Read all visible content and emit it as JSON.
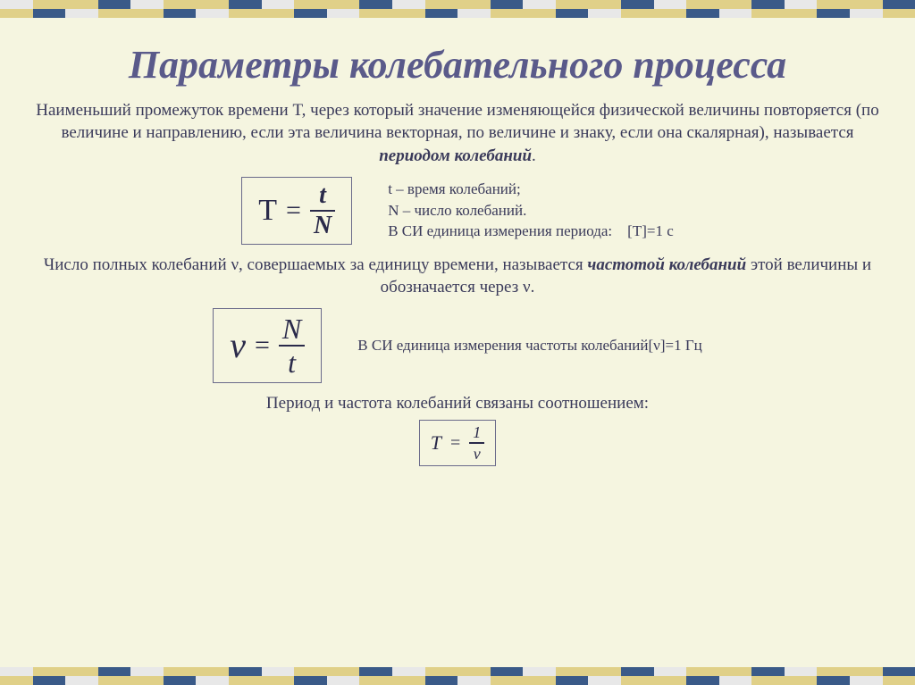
{
  "border": {
    "row1": [
      "#e8e8e8",
      "#e0d088",
      "#e0d088",
      "#3a5a88",
      "#e8e8e8",
      "#e0d088",
      "#e0d088",
      "#3a5a88",
      "#e8e8e8",
      "#e0d088",
      "#e0d088",
      "#3a5a88",
      "#e8e8e8",
      "#e0d088",
      "#e0d088",
      "#3a5a88",
      "#e8e8e8",
      "#e0d088",
      "#e0d088",
      "#3a5a88",
      "#e8e8e8",
      "#e0d088",
      "#e0d088",
      "#3a5a88",
      "#e8e8e8",
      "#e0d088",
      "#e0d088",
      "#3a5a88"
    ],
    "row2": [
      "#e0d088",
      "#3a5a88",
      "#e8e8e8",
      "#e0d088",
      "#e0d088",
      "#3a5a88",
      "#e8e8e8",
      "#e0d088",
      "#e0d088",
      "#3a5a88",
      "#e8e8e8",
      "#e0d088",
      "#e0d088",
      "#3a5a88",
      "#e8e8e8",
      "#e0d088",
      "#e0d088",
      "#3a5a88",
      "#e8e8e8",
      "#e0d088",
      "#e0d088",
      "#3a5a88",
      "#e8e8e8",
      "#e0d088",
      "#e0d088",
      "#3a5a88",
      "#e8e8e8",
      "#e0d088"
    ]
  },
  "title": "Параметры колебательного процесса",
  "para1_a": "Наименьший промежуток времени T, через который значение изменяющейся физической величины повторяется (по величине и направлению, если эта величина векторная, по величине и знаку, если она скалярная), называется ",
  "para1_term": "периодом колебаний",
  "para1_b": ".",
  "formula1": {
    "lhs": "T",
    "eq": "=",
    "num": "t",
    "den": "N"
  },
  "side1_l1": "t – время колебаний;",
  "side1_l2": "N – число колебаний.",
  "side1_l3": "В СИ единица измерения периода: [T]=1 с",
  "para2_a": "Число полных колебаний ν, совершаемых за единицу времени, называется ",
  "para2_term": "частотой колебаний",
  "para2_b": " этой величины и обозначается через ν.",
  "formula2": {
    "lhs": "ν",
    "eq": "=",
    "num": "N",
    "den": "t"
  },
  "side2": "В СИ единица измерения частоты колебаний[ν]=1 Гц",
  "para3": "Период и частота колебаний связаны соотношением:",
  "formula3": {
    "lhs": "T",
    "eq": "=",
    "num": "1",
    "den": "ν"
  },
  "colors": {
    "background": "#f5f5e0",
    "title": "#5a5a8a",
    "text": "#3a3a5a",
    "formula_border": "#6a6a8a",
    "formula_text": "#2a2a4a"
  },
  "typography": {
    "title_fontsize": 44,
    "body_fontsize": 19,
    "side_fontsize": 17,
    "formula_lhs_fontsize": 34,
    "font_family": "Times New Roman"
  }
}
